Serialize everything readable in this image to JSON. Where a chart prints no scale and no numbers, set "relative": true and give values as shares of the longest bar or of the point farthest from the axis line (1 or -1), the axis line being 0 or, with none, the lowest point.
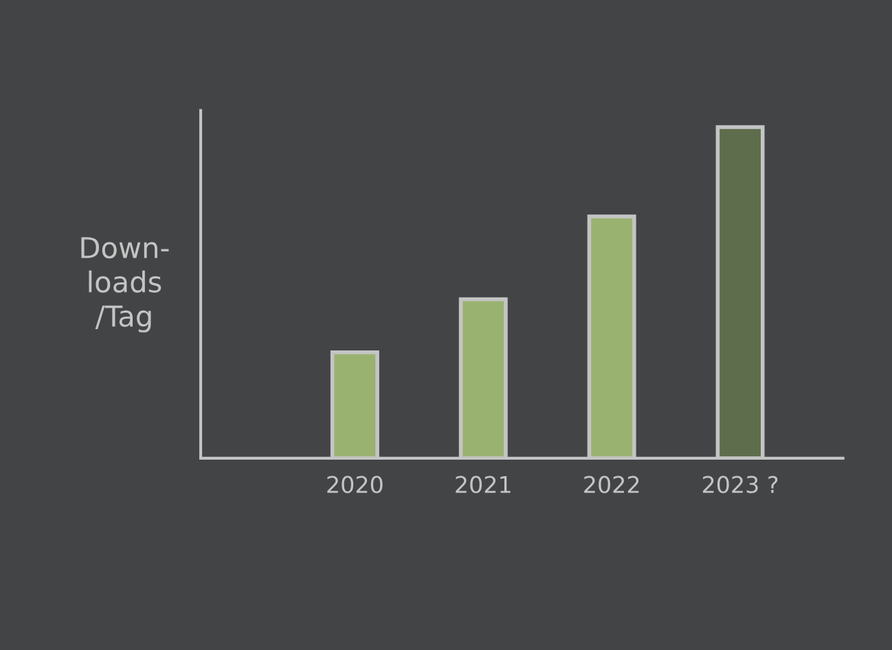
{
  "chart_data": {
    "type": "bar",
    "ylabel": "Down-\nloads\n/Tag",
    "categories": [
      "2020",
      "2021",
      "2022",
      "2023 ?"
    ],
    "values": [
      0.32,
      0.48,
      0.73,
      1.0
    ],
    "colors": [
      "#9dbd65",
      "#9dbd65",
      "#9dbd65",
      "#5f7247"
    ],
    "relative": true,
    "grid": false,
    "legend": false
  }
}
